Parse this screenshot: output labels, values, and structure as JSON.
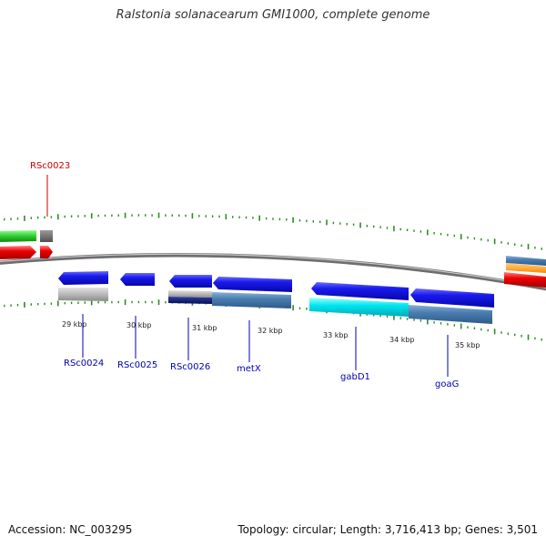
{
  "title": "Ralstonia solanacearum GMI1000, complete genome",
  "footer": {
    "accession": "Accession: NC_003295",
    "summary": "Topology: circular; Length: 3,716,413 bp; Genes: 3,501"
  },
  "colors": {
    "backbone": "#8c8c8c",
    "tick": "#2e8b22",
    "label_red": "#cc0000",
    "label_blue": "#0000b0",
    "blue_gene": "#1010e0",
    "steel": "#4a7eb0",
    "cyan": "#00e8f0",
    "navy": "#0a1a70",
    "gray": "#b8b8b8",
    "green": "#2fcc2f",
    "red": "#ee0000",
    "orange": "#ff9a00"
  },
  "ticks": [
    "29 kbp",
    "30 kbp",
    "31 kbp",
    "32 kbp",
    "33 kbp",
    "34 kbp",
    "35 kbp"
  ],
  "gene_labels": [
    {
      "text": "RSc0023",
      "color": "red"
    },
    {
      "text": "RSc0024",
      "color": "blue"
    },
    {
      "text": "RSc0025",
      "color": "blue"
    },
    {
      "text": "RSc0026",
      "color": "blue"
    },
    {
      "text": "metX",
      "color": "blue"
    },
    {
      "text": "gabD1",
      "color": "blue"
    },
    {
      "text": "goaG",
      "color": "blue"
    }
  ]
}
